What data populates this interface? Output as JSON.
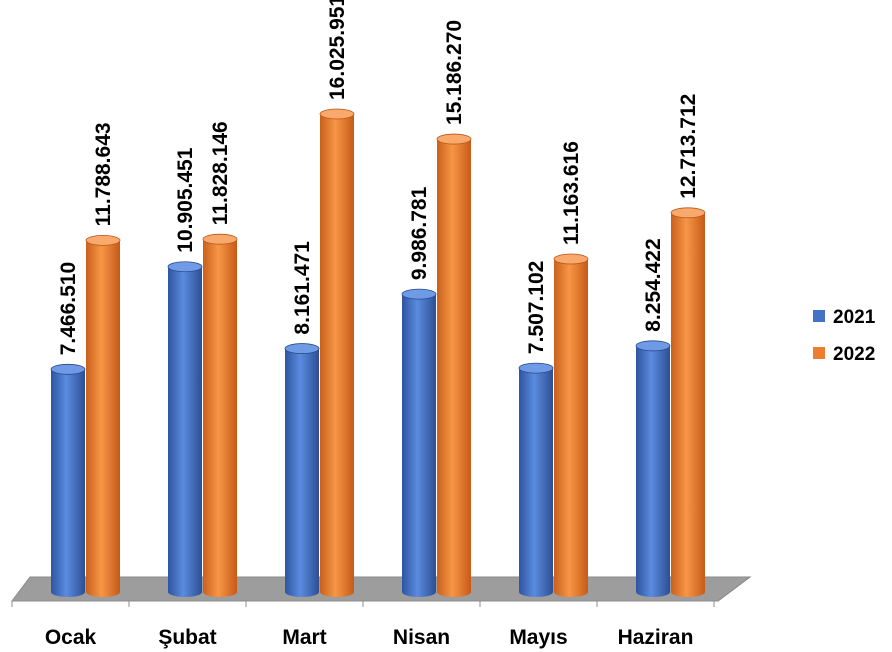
{
  "chart_data": {
    "type": "bar",
    "title": "",
    "xlabel": "",
    "ylabel": "",
    "categories": [
      "Ocak",
      "Şubat",
      "Mart",
      "Nisan",
      "Mayıs",
      "Haziran"
    ],
    "series": [
      {
        "name": "2021",
        "color": "#4472C4",
        "values": [
          7466510,
          10905451,
          8161471,
          9986781,
          7507102,
          8254422
        ],
        "labels": [
          "7.466.510",
          "10.905.451",
          "8.161.471",
          "9.986.781",
          "7.507.102",
          "8.254.422"
        ]
      },
      {
        "name": "2022",
        "color": "#ED7D31",
        "values": [
          11788643,
          11828146,
          16025951,
          15186270,
          11163616,
          12713712
        ],
        "labels": [
          "11.788.643",
          "11.828.146",
          "16.025.951",
          "15.186.270",
          "11.163.616",
          "12.713.712"
        ]
      }
    ],
    "ylim": [
      0,
      16500000
    ],
    "grid": false,
    "legend_position": "right",
    "style": "3d-cylinder"
  }
}
